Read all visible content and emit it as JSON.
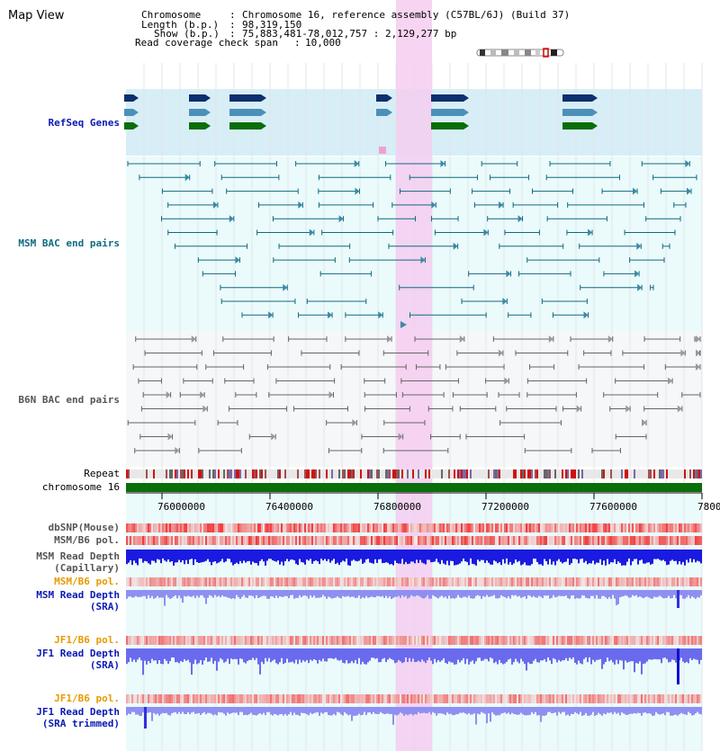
{
  "header": {
    "title": "Map View",
    "chromosome_label": "Chromosome",
    "chromosome_value": "Chromosome 16, reference assembly (C57BL/6J) (Build 37)",
    "length_label": "Length (b.p.)",
    "length_value": "98,319,150",
    "show_label": "Show (b.p.)",
    "show_value": "75,883,481-78,012,757 : 2,129,277 bp",
    "coverage_label": "Read coverage check span",
    "coverage_value": "10,000"
  },
  "tracks": {
    "refseq": "RefSeq Genes",
    "msm_bac": "MSM BAC end pairs",
    "b6n_bac": "B6N BAC end pairs",
    "repeat": "Repeat",
    "chromosome": "chromosome 16",
    "dbsnp": "dbSNP(Mouse)",
    "msm_b6_pol_1": "MSM/B6 pol.",
    "msm_read_depth_cap_1": "MSM Read Depth",
    "msm_read_depth_cap_2": "(Capillary)",
    "msm_b6_pol_2": "MSM/B6 pol.",
    "msm_read_depth_sra_1": "MSM Read Depth",
    "msm_read_depth_sra_2": "(SRA)",
    "jf1_b6_pol_1": "JF1/B6 pol.",
    "jf1_read_depth_sra_1": "JF1 Read Depth",
    "jf1_read_depth_sra_2": "(SRA)",
    "jf1_b6_pol_2": "JF1/B6 pol.",
    "jf1_read_depth_trim_1": "JF1 Read Depth",
    "jf1_read_depth_trim_2": "(SRA trimmed)"
  },
  "ruler": {
    "ticks": [
      "76000000",
      "76400000",
      "76800000",
      "77200000",
      "77600000",
      "7800"
    ]
  },
  "colors": {
    "refseq_bg": "#d7eef7",
    "msm_bg": "#ebfbfb",
    "b6n_bg": "#f5f6f7",
    "highlight": "#f5cdf0",
    "label_blue": "#0a1ab4",
    "label_orange": "#e69a00",
    "label_teal": "#106a80",
    "label_gray": "#555555",
    "chromosome_green": "#0a6e0a"
  }
}
